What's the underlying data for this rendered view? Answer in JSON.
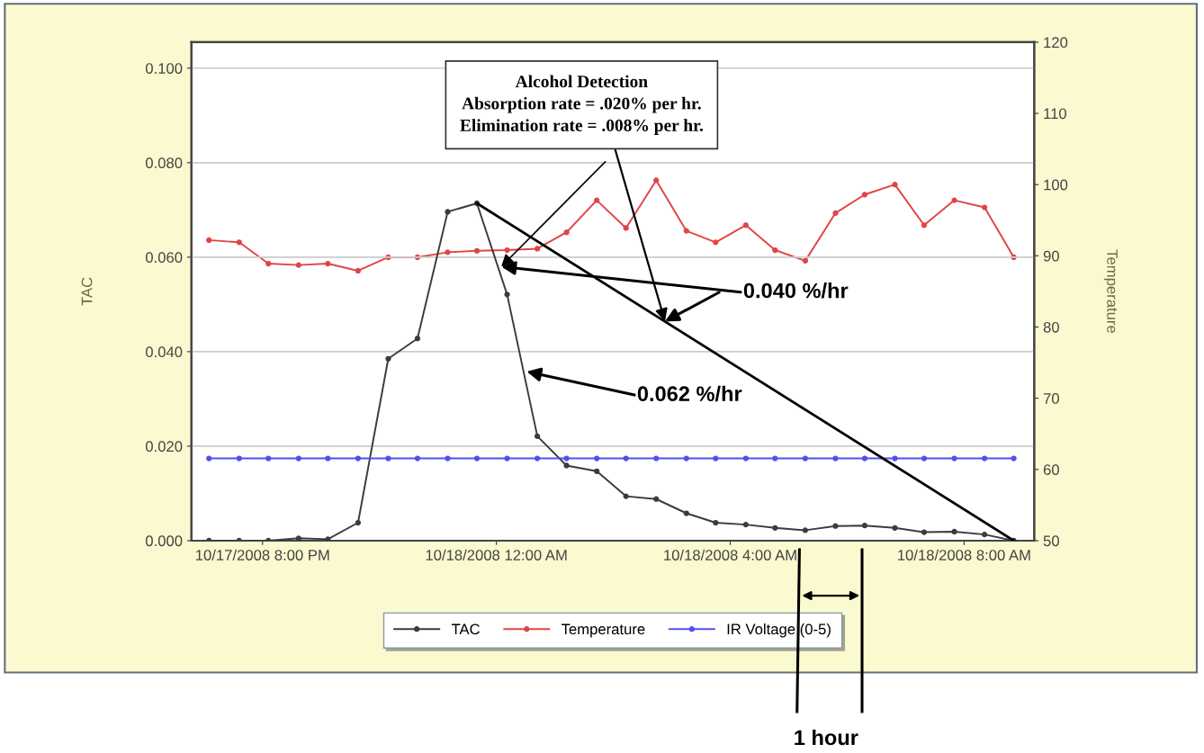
{
  "chart_data": {
    "type": "line",
    "ylabel": "TAC",
    "y2label": "Temperature",
    "x": [
      "2008-10-17T19:05",
      "2008-10-17T19:36",
      "2008-10-17T20:06",
      "2008-10-17T20:37",
      "2008-10-17T21:07",
      "2008-10-17T21:38",
      "2008-10-17T22:09",
      "2008-10-17T22:39",
      "2008-10-17T23:10",
      "2008-10-17T23:40",
      "2008-10-18T00:11",
      "2008-10-18T00:42",
      "2008-10-18T01:12",
      "2008-10-18T01:43",
      "2008-10-18T02:13",
      "2008-10-18T02:44",
      "2008-10-18T03:15",
      "2008-10-18T03:45",
      "2008-10-18T04:16",
      "2008-10-18T04:46",
      "2008-10-18T05:17",
      "2008-10-18T05:48",
      "2008-10-18T06:18",
      "2008-10-18T06:49",
      "2008-10-18T07:19",
      "2008-10-18T07:50",
      "2008-10-18T08:21",
      "2008-10-18T08:51"
    ],
    "series": [
      {
        "name": "TAC",
        "color": "#3c3c3c",
        "values": [
          0,
          0,
          0,
          0.0005,
          0.0003,
          0.0038,
          0.0385,
          0.0428,
          0.0696,
          0.0714,
          0.0521,
          0.0221,
          0.0159,
          0.0147,
          0.0094,
          0.0088,
          0.0058,
          0.0038,
          0.0034,
          0.0027,
          0.0022,
          0.0031,
          0.0032,
          0.0027,
          0.0018,
          0.0019,
          0.0013,
          0
        ]
      },
      {
        "name": "Temperature",
        "color": "#e04545",
        "axis": "y2",
        "values": [
          92.2,
          91.9,
          88.9,
          88.7,
          88.9,
          87.9,
          89.8,
          89.8,
          90.5,
          90.7,
          90.8,
          91.0,
          93.3,
          97.8,
          93.9,
          100.6,
          93.5,
          91.9,
          94.3,
          90.8,
          89.3,
          96.0,
          98.6,
          100.0,
          94.3,
          97.8,
          96.8,
          89.8
        ]
      },
      {
        "name": "IR Voltage (0-5)",
        "color": "#5050f0",
        "values": [
          0.0174,
          0.0174,
          0.0174,
          0.0174,
          0.0174,
          0.0174,
          0.0174,
          0.0174,
          0.0174,
          0.0174,
          0.0174,
          0.0174,
          0.0174,
          0.0174,
          0.0174,
          0.0174,
          0.0174,
          0.0174,
          0.0174,
          0.0174,
          0.0174,
          0.0174,
          0.0174,
          0.0174,
          0.0174,
          0.0174,
          0.0174,
          0.0174
        ]
      },
      {
        "type": "line",
        "color": "#000000",
        "marker": "none",
        "x": [
          "2008-10-17T23:40",
          "2008-10-18T08:51"
        ],
        "values": [
          0.0714,
          0
        ]
      }
    ],
    "xlim": [
      "2008-10-17T18:47",
      "2008-10-18T09:12"
    ],
    "xticks": [
      {
        "value": "2008-10-17T20:00",
        "label": "10/17/2008 8:00 PM"
      },
      {
        "value": "2008-10-18T00:00",
        "label": "10/18/2008 12:00 AM"
      },
      {
        "value": "2008-10-18T04:00",
        "label": "10/18/2008 4:00 AM"
      },
      {
        "value": "2008-10-18T08:00",
        "label": "10/18/2008 8:00 AM"
      }
    ],
    "ylim": [
      0,
      0.1055
    ],
    "yticks": [
      {
        "value": 0,
        "label": "0.000"
      },
      {
        "value": 0.02,
        "label": "0.020"
      },
      {
        "value": 0.04,
        "label": "0.040"
      },
      {
        "value": 0.06,
        "label": "0.060"
      },
      {
        "value": 0.08,
        "label": "0.080"
      },
      {
        "value": 0.1,
        "label": "0.100"
      }
    ],
    "y2lim": [
      50,
      120
    ],
    "y2ticks": [
      50,
      60,
      70,
      80,
      90,
      100,
      110,
      120
    ],
    "grid": "y",
    "legend": "bottom",
    "marker": "circle",
    "annotations": [
      {
        "text": "Alcohol Detection\nAbsorption rate = .020% per hr.\nElimination rate = .008% per hr.",
        "x": "2008-10-18T02:53",
        "y": 0.0464
      },
      {
        "text": "0.040 %/hr",
        "x": "2008-10-18T00:05",
        "y": 0.058
      },
      {
        "text": "0.062 %/hr",
        "x": "2008-10-18T00:31",
        "y": 0.0358
      },
      "1 hour"
    ]
  }
}
